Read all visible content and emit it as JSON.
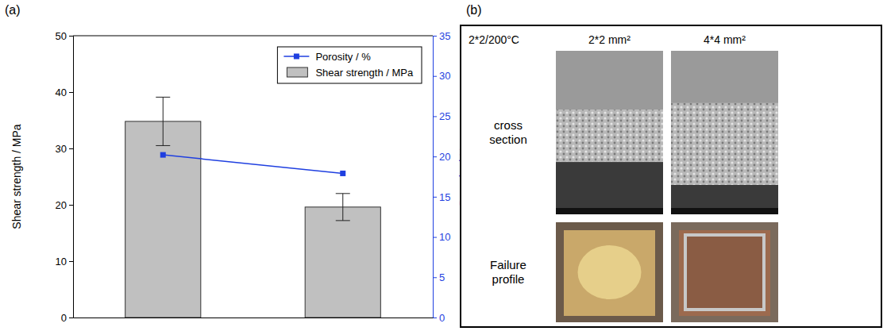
{
  "chart_data": {
    "type": "bar",
    "categories": [
      null,
      null
    ],
    "ylabel": "Shear strength / MPa",
    "y2label": "Porosity / %",
    "ylim": [
      0,
      50
    ],
    "yticks": [
      0,
      10,
      20,
      30,
      40,
      50
    ],
    "y2lim": [
      0,
      35
    ],
    "y2ticks": [
      0,
      5,
      10,
      15,
      20,
      25,
      30,
      35
    ],
    "grid": false,
    "legend": "upper right",
    "series": [
      {
        "name": "Porosity / %",
        "type": "line",
        "color": "#1f3fe0",
        "marker": "square",
        "axis": "y2",
        "values": [
          20.2,
          17.9
        ]
      },
      {
        "name": "Shear strength / MPa",
        "type": "bar",
        "color": "#c0c0c0",
        "values": [
          34.8,
          19.6
        ],
        "errors": [
          4.3,
          2.4
        ]
      }
    ]
  },
  "panel_labels": [
    "(a)",
    "(b)"
  ],
  "figure": {
    "header": "2*2/200°C",
    "columns": [
      "2*2 mm²",
      "4*4 mm²"
    ],
    "rows": [
      "cross section",
      "Failure profile"
    ]
  }
}
